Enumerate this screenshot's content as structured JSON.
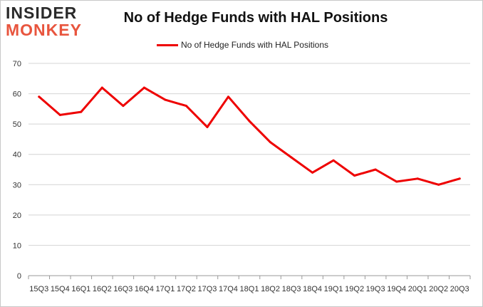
{
  "brand": {
    "line1": "INSIDER",
    "line2": "MONKEY"
  },
  "chart_data": {
    "type": "line",
    "title": "No of Hedge Funds with HAL Positions",
    "xlabel": "",
    "ylabel": "",
    "categories": [
      "15Q3",
      "15Q4",
      "16Q1",
      "16Q2",
      "16Q3",
      "16Q4",
      "17Q1",
      "17Q2",
      "17Q3",
      "17Q4",
      "18Q1",
      "18Q2",
      "18Q3",
      "18Q4",
      "19Q1",
      "19Q2",
      "19Q3",
      "19Q4",
      "20Q1",
      "20Q2",
      "20Q3"
    ],
    "series": [
      {
        "name": "No of Hedge Funds with HAL Positions",
        "values": [
          59,
          53,
          54,
          62,
          56,
          62,
          58,
          56,
          49,
          59,
          51,
          44,
          39,
          34,
          38,
          33,
          35,
          31,
          32,
          30,
          32
        ],
        "color": "#ee0000"
      }
    ],
    "ylim": [
      0,
      70
    ],
    "yticks": [
      0,
      10,
      20,
      30,
      40,
      50,
      60,
      70
    ],
    "grid": true,
    "legend": "top-center"
  }
}
